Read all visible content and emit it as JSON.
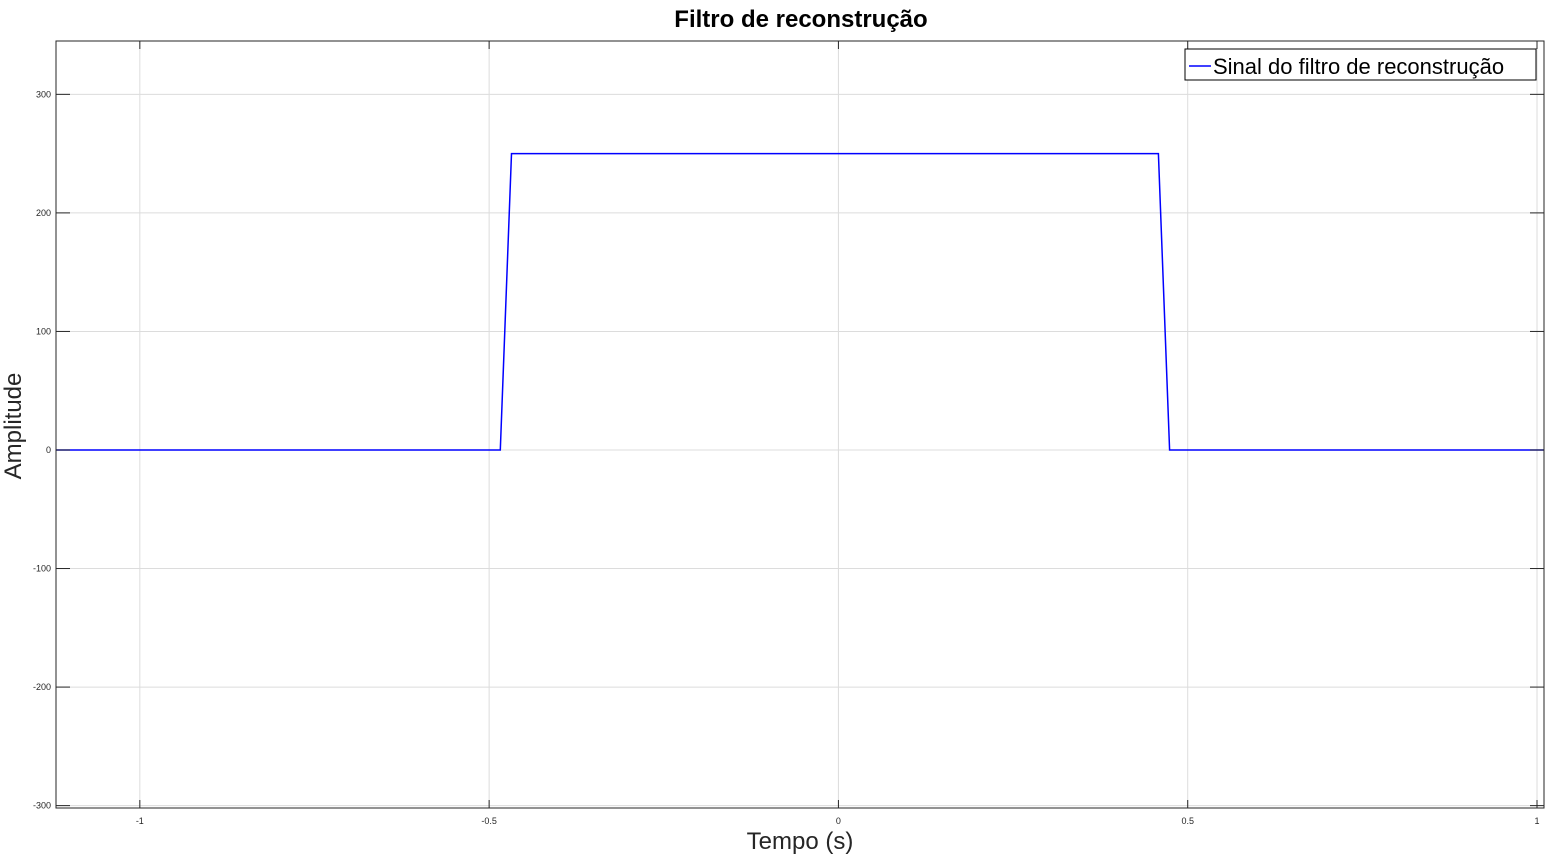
{
  "chart_data": {
    "type": "line",
    "title": "Filtro de reconstrução",
    "xlabel": "Tempo (s)",
    "ylabel": "Amplitude",
    "xlim": [
      -1.12,
      1.01
    ],
    "ylim": [
      -302,
      345
    ],
    "xticks": [
      -1,
      -0.5,
      0,
      0.5,
      1
    ],
    "xtick_labels": [
      "-1",
      "-0.5",
      "0",
      "0.5",
      "1"
    ],
    "yticks": [
      -300,
      -200,
      -100,
      0,
      100,
      200,
      300
    ],
    "ytick_labels": [
      "-300",
      "-200",
      "-100",
      "0",
      "100",
      "200",
      "300"
    ],
    "grid": true,
    "legend_position": "top-right",
    "series": [
      {
        "name": "Sinal do filtro de reconstrução",
        "color": "#0000ff",
        "x": [
          -1.12,
          -0.484,
          -0.468,
          0.458,
          0.474,
          1.01
        ],
        "y": [
          0,
          0,
          250,
          250,
          0,
          0
        ]
      }
    ]
  }
}
